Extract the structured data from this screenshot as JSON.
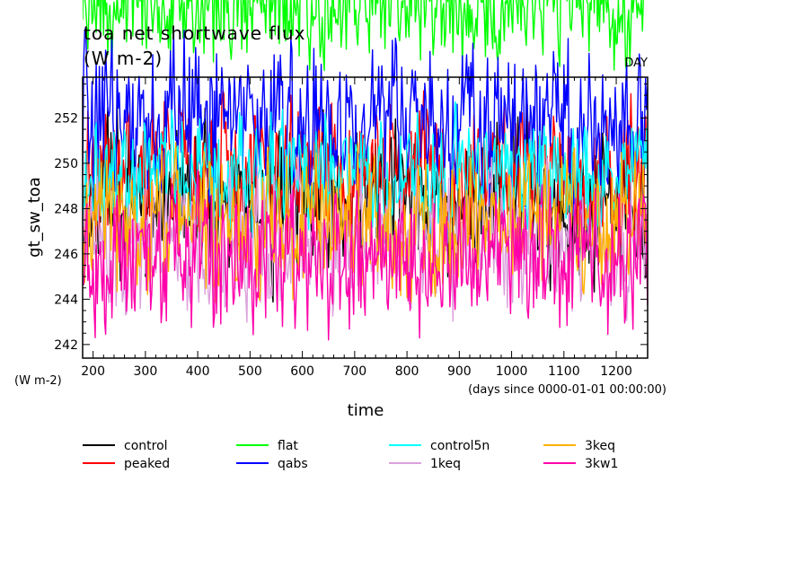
{
  "chart_data": {
    "type": "line",
    "title": "toa net shortwave flux",
    "units_label": "(W m-2)",
    "corner_label": "DAY",
    "ylabel": "gt_sw_toa",
    "yunits": "(W m-2)",
    "xlabel": "time",
    "xunits": "(days since 0000-01-01 00:00:00)",
    "xlim": [
      180,
      1260
    ],
    "ylim": [
      241.4,
      253.8
    ],
    "xticks": [
      200,
      300,
      400,
      500,
      600,
      700,
      800,
      900,
      1000,
      1100,
      1200
    ],
    "xtick_labels": [
      "200",
      "300",
      "400",
      "500",
      "600",
      "700",
      "800",
      "900",
      "1000",
      "1100",
      "1200"
    ],
    "yticks": [
      242,
      244,
      246,
      248,
      250,
      252
    ],
    "ytick_labels": [
      "242",
      "244",
      "246",
      "248",
      "250",
      "252"
    ],
    "grid": false,
    "legend_position": "bottom",
    "x_start": 180,
    "x_end": 1260,
    "x_step": 2,
    "series": [
      {
        "name": "control",
        "color": "#000000",
        "mean": 248.5,
        "amp": 2.2,
        "lo": 241.5,
        "hi": 252.6,
        "seed": 11
      },
      {
        "name": "peaked",
        "color": "#ff0000",
        "mean": 249.6,
        "amp": 2.0,
        "lo": 244.0,
        "hi": 253.6,
        "seed": 23
      },
      {
        "name": "flat",
        "color": "#00ff00",
        "mean": 257.0,
        "amp": 1.6,
        "lo": 253.0,
        "hi": 260.0,
        "seed": 37
      },
      {
        "name": "qabs",
        "color": "#0000ff",
        "mean": 252.0,
        "amp": 2.2,
        "lo": 247.0,
        "hi": 258.0,
        "seed": 41
      },
      {
        "name": "control5n",
        "color": "#00ffff",
        "mean": 249.5,
        "amp": 1.8,
        "lo": 244.5,
        "hi": 253.5,
        "seed": 53
      },
      {
        "name": "1keq",
        "color": "#dda0dd",
        "mean": 246.5,
        "amp": 2.0,
        "lo": 239.0,
        "hi": 251.5,
        "seed": 67
      },
      {
        "name": "3keq",
        "color": "#ffb000",
        "mean": 247.2,
        "amp": 2.0,
        "lo": 240.0,
        "hi": 251.0,
        "seed": 79
      },
      {
        "name": "3kw1",
        "color": "#ff00aa",
        "mean": 245.8,
        "amp": 2.0,
        "lo": 240.0,
        "hi": 250.5,
        "seed": 97
      }
    ]
  }
}
